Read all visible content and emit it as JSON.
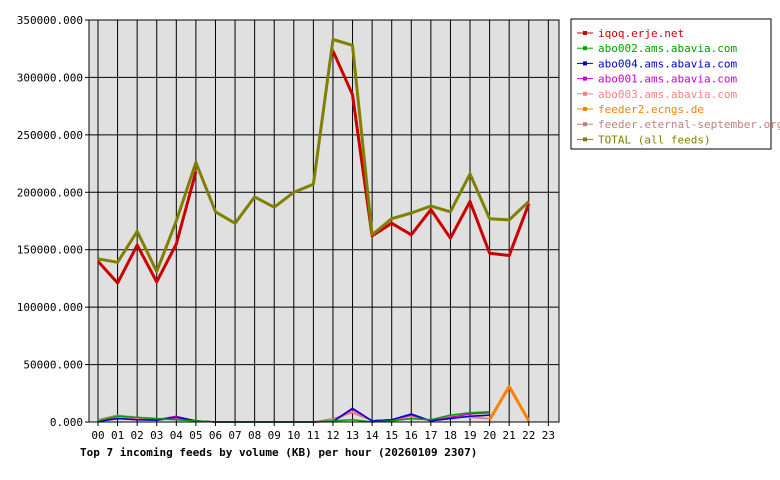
{
  "chart_data": {
    "type": "line",
    "title": "Top 7 incoming feeds by volume (KB) per hour (20260109 2307)",
    "xlabel": "",
    "ylabel": "",
    "categories": [
      "00",
      "01",
      "02",
      "03",
      "04",
      "05",
      "06",
      "07",
      "08",
      "09",
      "10",
      "11",
      "12",
      "13",
      "14",
      "15",
      "16",
      "17",
      "18",
      "19",
      "20",
      "21",
      "22",
      "23"
    ],
    "y_ticks": [
      "0.000",
      "50000.000",
      "100000.000",
      "150000.000",
      "200000.000",
      "250000.000",
      "300000.000",
      "350000.000"
    ],
    "ylim": [
      0,
      350000
    ],
    "grid": true,
    "legend_position": "top-right",
    "series": [
      {
        "name": "iqoq.erje.net",
        "color": "#cc0000",
        "values": [
          140000,
          121000,
          154000,
          122000,
          155000,
          218000,
          null,
          null,
          null,
          null,
          null,
          null,
          323000,
          285000,
          162000,
          173000,
          163000,
          185000,
          160000,
          192000,
          147000,
          145000,
          190000,
          null
        ]
      },
      {
        "name": "abo002.ams.abavia.com",
        "color": "#00a000",
        "values": [
          1000,
          5000,
          4000,
          3000,
          2000,
          1000,
          0,
          0,
          0,
          0,
          0,
          0,
          1000,
          2000,
          0,
          1000,
          3000,
          2000,
          6000,
          8000,
          9000,
          null,
          null,
          null
        ]
      },
      {
        "name": "abo004.ams.abavia.com",
        "color": "#0000cc",
        "values": [
          500,
          3000,
          2000,
          1500,
          4000,
          1000,
          0,
          0,
          0,
          0,
          0,
          0,
          500,
          12000,
          1000,
          2000,
          7000,
          1000,
          3000,
          5000,
          6000,
          null,
          null,
          null
        ]
      },
      {
        "name": "abo001.ams.abavia.com",
        "color": "#cc00cc",
        "values": [
          500,
          3000,
          2000,
          2000,
          5000,
          1000,
          0,
          0,
          0,
          0,
          0,
          0,
          500,
          11000,
          1000,
          2000,
          6000,
          1000,
          4000,
          7000,
          8000,
          null,
          null,
          null
        ]
      },
      {
        "name": "abo003.ams.abavia.com",
        "color": "#ff8080",
        "values": [
          500,
          4000,
          3000,
          2000,
          3000,
          1000,
          0,
          0,
          0,
          0,
          0,
          0,
          1000,
          9000,
          1000,
          2000,
          5000,
          1000,
          5000,
          4000,
          6000,
          null,
          null,
          null
        ]
      },
      {
        "name": "feeder2.ecngs.de",
        "color": "#ff8000",
        "values": [
          null,
          null,
          null,
          null,
          null,
          null,
          null,
          null,
          null,
          null,
          null,
          null,
          null,
          null,
          null,
          null,
          null,
          null,
          null,
          null,
          2000,
          31000,
          1000,
          null
        ]
      },
      {
        "name": "feeder.eternal-september.org",
        "color": "#c08080",
        "values": [
          2000,
          6000,
          4000,
          3000,
          3000,
          1000,
          0,
          0,
          0,
          0,
          0,
          0,
          3000,
          8000,
          1000,
          2000,
          3000,
          2000,
          5000,
          4000,
          3000,
          null,
          null,
          null
        ]
      },
      {
        "name": "TOTAL (all feeds)",
        "color": "#808000",
        "values": [
          142000,
          139000,
          166000,
          131000,
          175000,
          226000,
          183000,
          173000,
          196000,
          187000,
          200000,
          207000,
          333000,
          328000,
          163000,
          177000,
          182000,
          188000,
          183000,
          216000,
          177000,
          176000,
          192000,
          null
        ]
      }
    ]
  }
}
